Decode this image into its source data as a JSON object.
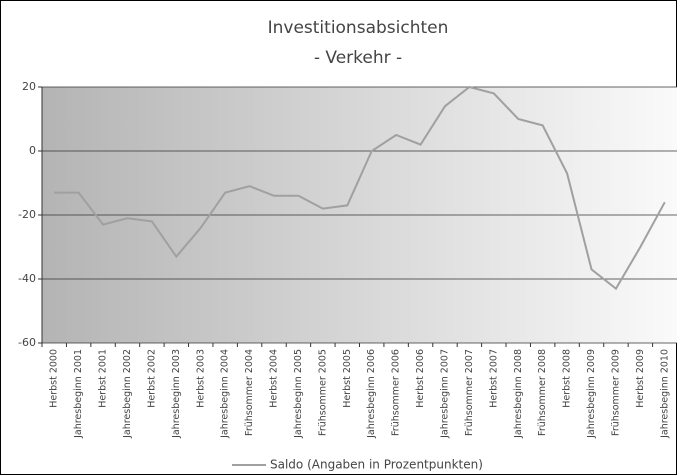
{
  "chart_data": {
    "type": "line",
    "title": "Investitionsabsichten",
    "subtitle": "- Verkehr -",
    "categories": [
      "Herbst 2000",
      "Jahresbeginn 2001",
      "Herbst 2001",
      "Jahresbeginn 2002",
      "Herbst 2002",
      "Jahresbeginn 2003",
      "Herbst 2003",
      "Jahresbeginn 2004",
      "Frühsommer 2004",
      "Herbst 2004",
      "Jahresbeginn 2005",
      "Frühsommer 2005",
      "Herbst 2005",
      "Jahresbeginn 2006",
      "Frühsommer 2006",
      "Herbst 2006",
      "Jahresbeginn 2007",
      "Frühsommer 2007",
      "Herbst 2007",
      "Jahresbeginn 2008",
      "Frühsommer 2008",
      "Herbst 2008",
      "Jahresbeginn 2009",
      "Frühsommer 2009",
      "Herbst 2009",
      "Jahresbeginn 2010"
    ],
    "series": [
      {
        "name": "Saldo (Angaben in Prozentpunkten)",
        "color": "#a0a0a0",
        "values": [
          -13,
          -13,
          -23,
          -21,
          -22,
          -33,
          -24,
          -13,
          -11,
          -14,
          -14,
          -18,
          -17,
          0,
          5,
          2,
          14,
          20,
          18,
          10,
          8,
          -7,
          -37,
          -43,
          -30,
          -16
        ]
      }
    ],
    "ylim": [
      -60,
      20
    ],
    "yticks": [
      -60,
      -40,
      -20,
      0,
      20
    ],
    "grid": true,
    "legend": "bottom"
  }
}
